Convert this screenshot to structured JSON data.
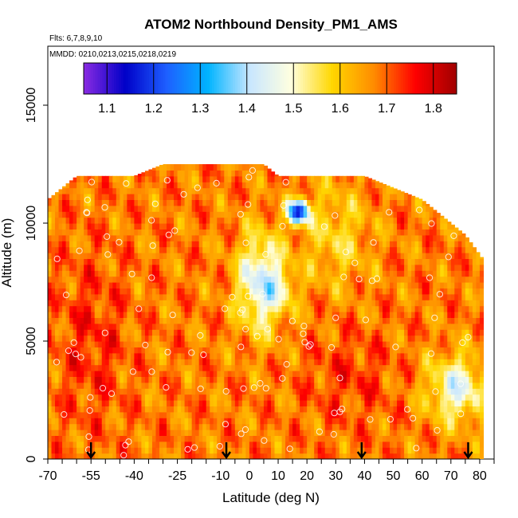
{
  "chart_data": {
    "type": "heatmap",
    "title": "ATOM2 Northbound Density_PM1_AMS",
    "flights_note": "Flts: 6,7,8,9,10",
    "dates_note": "MMDD: 0210,0213,0215,0218,0219",
    "xlabel": "Latitude (deg N)",
    "ylabel": "Altitude (m)",
    "xlim": [
      -70,
      85
    ],
    "ylim": [
      0,
      17500
    ],
    "x_ticks": [
      -70,
      -55,
      -40,
      -25,
      -10,
      0,
      10,
      20,
      30,
      40,
      50,
      60,
      70,
      80
    ],
    "y_ticks": [
      0,
      5000,
      10000,
      15000
    ],
    "colorbar": {
      "range": [
        1.05,
        1.85
      ],
      "ticks": [
        1.1,
        1.2,
        1.3,
        1.4,
        1.5,
        1.6,
        1.7,
        1.8
      ],
      "colors": [
        "#8a2be2",
        "#0000c8",
        "#1e5fff",
        "#00b4ff",
        "#c8e6ff",
        "#ffffe0",
        "#ffd700",
        "#ff8c00",
        "#ff0000",
        "#a00000"
      ]
    },
    "profile_arrows_lat": [
      -55,
      -8,
      39,
      76
    ],
    "data_extent": {
      "lat_min": -70,
      "lat_max": 81,
      "top_altitude_profile": [
        [
          -70,
          11000
        ],
        [
          -65,
          11500
        ],
        [
          -60,
          12000
        ],
        [
          -40,
          12000
        ],
        [
          -30,
          12500
        ],
        [
          5,
          12500
        ],
        [
          10,
          12000
        ],
        [
          40,
          12000
        ],
        [
          50,
          11500
        ],
        [
          60,
          11000
        ],
        [
          70,
          10000
        ],
        [
          75,
          9500
        ],
        [
          81,
          8500
        ]
      ]
    },
    "cells_summary": [
      {
        "lat": [
          -68,
          -30
        ],
        "alt": [
          0,
          11000
        ],
        "density": 1.74
      },
      {
        "lat": [
          -30,
          -8
        ],
        "alt": [
          0,
          12000
        ],
        "density": 1.68
      },
      {
        "lat": [
          -5,
          12
        ],
        "alt": [
          5500,
          9500
        ],
        "density": 1.42
      },
      {
        "lat": [
          8,
          14
        ],
        "alt": [
          6500,
          8000
        ],
        "density": 1.36
      },
      {
        "lat": [
          14,
          20
        ],
        "alt": [
          10000,
          11000
        ],
        "density": 1.12
      },
      {
        "lat": [
          55,
          80
        ],
        "alt": [
          1500,
          4500
        ],
        "density": 1.52
      },
      {
        "lat": [
          -10,
          81
        ],
        "alt": [
          0,
          3000
        ],
        "density": 1.72
      }
    ]
  }
}
